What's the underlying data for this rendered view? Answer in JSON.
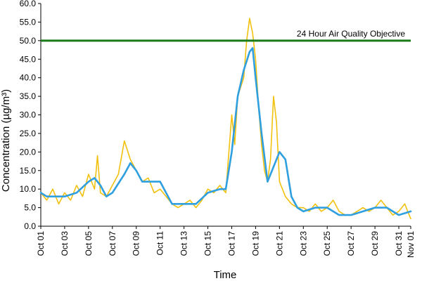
{
  "chart_data": {
    "type": "line",
    "title": "",
    "xlabel": "Time",
    "ylabel": "Concentration (µg/m³)",
    "ylim": [
      0,
      60
    ],
    "y_ticks": [
      "0.0",
      "5.0",
      "10.0",
      "15.0",
      "20.0",
      "25.0",
      "30.0",
      "35.0",
      "40.0",
      "45.0",
      "50.0",
      "55.0",
      "60.0"
    ],
    "x_range": [
      "Oct 01",
      "Nov 01"
    ],
    "x_tick_labels": [
      "Oct 01",
      "Oct 03",
      "Oct 05",
      "Oct 07",
      "Oct 09",
      "Oct 11",
      "Oct 13",
      "Oct 15",
      "Oct 17",
      "Oct 19",
      "Oct 21",
      "Oct 23",
      "Oct 25",
      "Oct 27",
      "Oct 29",
      "Oct 31",
      "Nov 01"
    ],
    "grid": false,
    "objective": {
      "label": "24 Hour Air Quality Objective",
      "value": 50,
      "color": "#1a7a1a"
    },
    "series": [
      {
        "color": "#f2c10f",
        "points": [
          [
            "Oct 01 00:00",
            9
          ],
          [
            "Oct 01 12:00",
            7
          ],
          [
            "Oct 02 00:00",
            10
          ],
          [
            "Oct 02 12:00",
            6
          ],
          [
            "Oct 03 00:00",
            9
          ],
          [
            "Oct 03 12:00",
            7
          ],
          [
            "Oct 04 00:00",
            11
          ],
          [
            "Oct 04 12:00",
            8
          ],
          [
            "Oct 05 00:00",
            14
          ],
          [
            "Oct 05 12:00",
            10
          ],
          [
            "Oct 05 18:00",
            19
          ],
          [
            "Oct 06 00:00",
            9
          ],
          [
            "Oct 06 12:00",
            8
          ],
          [
            "Oct 07 00:00",
            11
          ],
          [
            "Oct 07 12:00",
            14
          ],
          [
            "Oct 08 00:00",
            23
          ],
          [
            "Oct 08 12:00",
            18
          ],
          [
            "Oct 09 00:00",
            15
          ],
          [
            "Oct 09 12:00",
            12
          ],
          [
            "Oct 10 00:00",
            13
          ],
          [
            "Oct 10 12:00",
            9
          ],
          [
            "Oct 11 00:00",
            10
          ],
          [
            "Oct 11 12:00",
            8
          ],
          [
            "Oct 12 00:00",
            6
          ],
          [
            "Oct 12 12:00",
            5
          ],
          [
            "Oct 13 00:00",
            6
          ],
          [
            "Oct 13 12:00",
            7
          ],
          [
            "Oct 14 00:00",
            5
          ],
          [
            "Oct 14 12:00",
            7
          ],
          [
            "Oct 15 00:00",
            10
          ],
          [
            "Oct 15 12:00",
            9
          ],
          [
            "Oct 16 00:00",
            11
          ],
          [
            "Oct 16 12:00",
            9
          ],
          [
            "Oct 17 00:00",
            30
          ],
          [
            "Oct 17 06:00",
            22
          ],
          [
            "Oct 17 12:00",
            35
          ],
          [
            "Oct 18 00:00",
            40
          ],
          [
            "Oct 18 06:00",
            50
          ],
          [
            "Oct 18 12:00",
            56
          ],
          [
            "Oct 18 18:00",
            52
          ],
          [
            "Oct 19 00:00",
            45
          ],
          [
            "Oct 19 06:00",
            32
          ],
          [
            "Oct 19 12:00",
            22
          ],
          [
            "Oct 19 18:00",
            15
          ],
          [
            "Oct 20 00:00",
            12
          ],
          [
            "Oct 20 06:00",
            18
          ],
          [
            "Oct 20 12:00",
            35
          ],
          [
            "Oct 20 18:00",
            28
          ],
          [
            "Oct 21 00:00",
            12
          ],
          [
            "Oct 21 12:00",
            8
          ],
          [
            "Oct 22 00:00",
            6
          ],
          [
            "Oct 22 12:00",
            5
          ],
          [
            "Oct 23 00:00",
            5
          ],
          [
            "Oct 23 12:00",
            4
          ],
          [
            "Oct 24 00:00",
            6
          ],
          [
            "Oct 24 12:00",
            4
          ],
          [
            "Oct 25 00:00",
            5
          ],
          [
            "Oct 25 12:00",
            7
          ],
          [
            "Oct 26 00:00",
            4
          ],
          [
            "Oct 26 12:00",
            3
          ],
          [
            "Oct 27 00:00",
            3
          ],
          [
            "Oct 27 12:00",
            4
          ],
          [
            "Oct 28 00:00",
            5
          ],
          [
            "Oct 28 12:00",
            4
          ],
          [
            "Oct 29 00:00",
            5
          ],
          [
            "Oct 29 12:00",
            7
          ],
          [
            "Oct 30 00:00",
            5
          ],
          [
            "Oct 30 12:00",
            3
          ],
          [
            "Oct 31 00:00",
            4
          ],
          [
            "Oct 31 12:00",
            6
          ],
          [
            "Nov 01 00:00",
            2
          ]
        ]
      },
      {
        "color": "#2f9fe0",
        "points": [
          [
            "Oct 01 00:00",
            9
          ],
          [
            "Oct 01 12:00",
            8
          ],
          [
            "Oct 02 00:00",
            8
          ],
          [
            "Oct 03 00:00",
            8
          ],
          [
            "Oct 04 00:00",
            9
          ],
          [
            "Oct 05 00:00",
            12
          ],
          [
            "Oct 05 12:00",
            13
          ],
          [
            "Oct 06 00:00",
            11
          ],
          [
            "Oct 06 12:00",
            8
          ],
          [
            "Oct 07 00:00",
            9
          ],
          [
            "Oct 08 00:00",
            14
          ],
          [
            "Oct 08 12:00",
            17
          ],
          [
            "Oct 09 00:00",
            15
          ],
          [
            "Oct 09 12:00",
            12
          ],
          [
            "Oct 10 00:00",
            12
          ],
          [
            "Oct 11 00:00",
            12
          ],
          [
            "Oct 12 00:00",
            6
          ],
          [
            "Oct 13 00:00",
            6
          ],
          [
            "Oct 14 00:00",
            6
          ],
          [
            "Oct 15 00:00",
            9
          ],
          [
            "Oct 16 00:00",
            10
          ],
          [
            "Oct 16 12:00",
            10
          ],
          [
            "Oct 17 00:00",
            20
          ],
          [
            "Oct 17 12:00",
            35
          ],
          [
            "Oct 18 00:00",
            42
          ],
          [
            "Oct 18 12:00",
            47
          ],
          [
            "Oct 18 18:00",
            48
          ],
          [
            "Oct 19 00:00",
            40
          ],
          [
            "Oct 19 12:00",
            25
          ],
          [
            "Oct 20 00:00",
            12
          ],
          [
            "Oct 20 12:00",
            16
          ],
          [
            "Oct 21 00:00",
            20
          ],
          [
            "Oct 21 12:00",
            18
          ],
          [
            "Oct 22 00:00",
            8
          ],
          [
            "Oct 22 12:00",
            5
          ],
          [
            "Oct 23 00:00",
            4
          ],
          [
            "Oct 24 00:00",
            5
          ],
          [
            "Oct 25 00:00",
            5
          ],
          [
            "Oct 26 00:00",
            3
          ],
          [
            "Oct 27 00:00",
            3
          ],
          [
            "Oct 28 00:00",
            4
          ],
          [
            "Oct 29 00:00",
            5
          ],
          [
            "Oct 30 00:00",
            5
          ],
          [
            "Oct 31 00:00",
            3
          ],
          [
            "Nov 01 00:00",
            4
          ]
        ]
      }
    ]
  }
}
